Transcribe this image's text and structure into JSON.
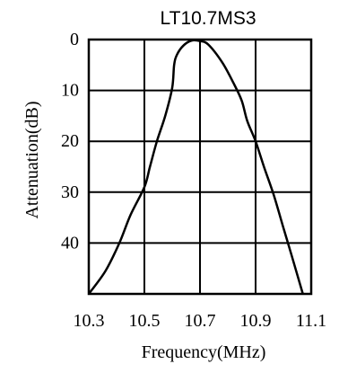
{
  "chart_data": {
    "type": "line",
    "title": "LT10.7MS3",
    "xlabel": "Frequency(MHz)",
    "ylabel": "Attenuation(dB)",
    "xlim": [
      10.3,
      11.1
    ],
    "ylim": [
      0,
      50
    ],
    "y_inverted": true,
    "grid": true,
    "x_ticks": [
      10.3,
      10.5,
      10.7,
      10.9,
      11.1
    ],
    "x_tick_labels": [
      "10.3",
      "10.5",
      "10.7",
      "10.9",
      "11.1"
    ],
    "y_ticks": [
      0,
      10,
      20,
      30,
      40
    ],
    "y_tick_labels": [
      "0",
      "10",
      "20",
      "30",
      "40"
    ],
    "series": [
      {
        "values_xy": [
          [
            10.3,
            50
          ],
          [
            10.36,
            45.5
          ],
          [
            10.41,
            40
          ],
          [
            10.45,
            34.5
          ],
          [
            10.5,
            29
          ],
          [
            10.52,
            25
          ],
          [
            10.545,
            20
          ],
          [
            10.575,
            15
          ],
          [
            10.6,
            9.5
          ],
          [
            10.607,
            5
          ],
          [
            10.617,
            3
          ],
          [
            10.64,
            1.2
          ],
          [
            10.67,
            0.2
          ],
          [
            10.7,
            0.3
          ],
          [
            10.73,
            1
          ],
          [
            10.78,
            4.5
          ],
          [
            10.82,
            8.5
          ],
          [
            10.85,
            12
          ],
          [
            10.87,
            16
          ],
          [
            10.9,
            20
          ],
          [
            10.93,
            25
          ],
          [
            10.965,
            30.5
          ],
          [
            11.0,
            37
          ],
          [
            11.03,
            42.5
          ],
          [
            11.07,
            50
          ]
        ]
      }
    ]
  }
}
